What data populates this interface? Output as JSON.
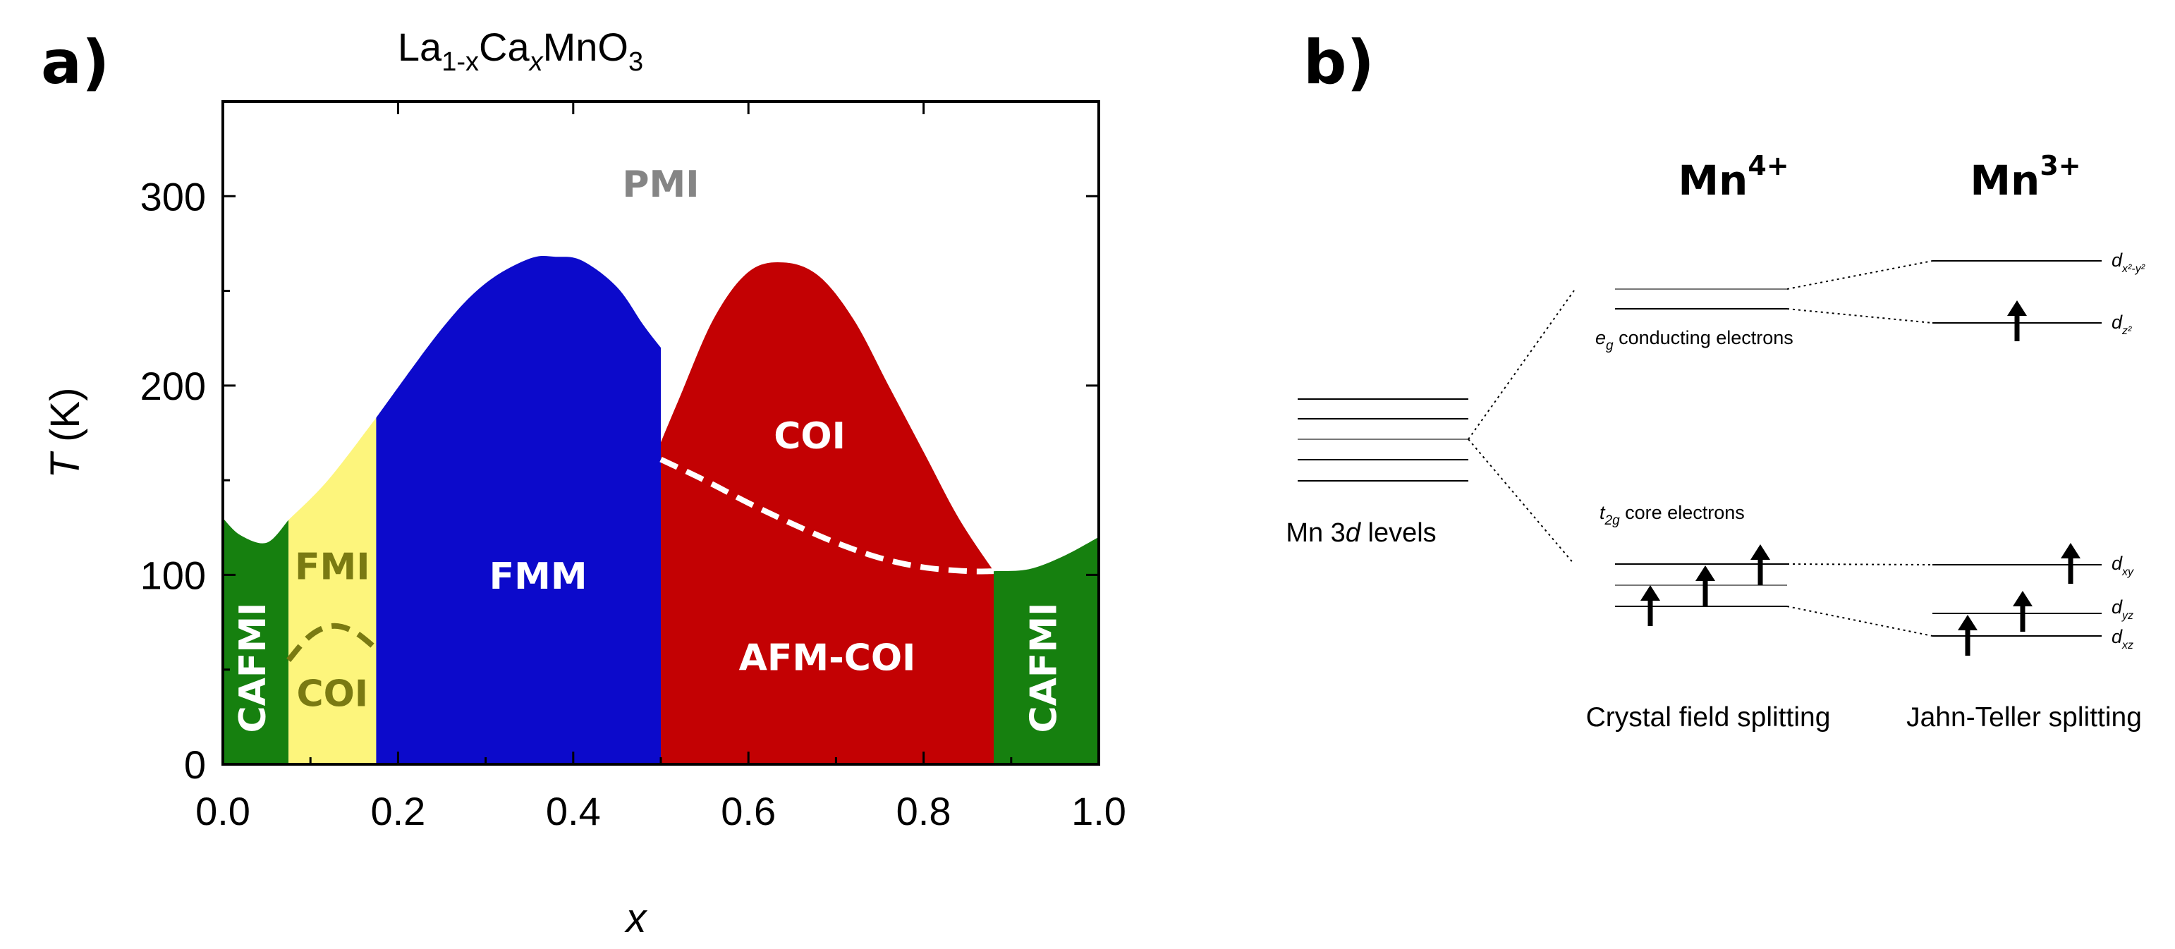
{
  "panel_a": {
    "label": "a)",
    "title": {
      "base1": "La",
      "sub1": "1-x",
      "base2": "Ca",
      "sub2": "x",
      "base3": "MnO",
      "sub3": "3"
    },
    "chart_data": {
      "type": "area",
      "title": "La1-xCaxMnO3",
      "xlabel": "x",
      "ylabel_italic": "T",
      "ylabel_unit": " (K)",
      "xlim": [
        0.0,
        1.0
      ],
      "ylim": [
        0,
        350
      ],
      "xticks": [
        0.0,
        0.2,
        0.4,
        0.6,
        0.8,
        1.0
      ],
      "xtick_labels": [
        "0.0",
        "0.2",
        "0.4",
        "0.6",
        "0.8",
        "1.0"
      ],
      "yticks": [
        0,
        100,
        200,
        300
      ],
      "ytick_labels": [
        "0",
        "100",
        "200",
        "300"
      ],
      "regions": [
        {
          "id": "cafmi-left",
          "label": "CAFMI",
          "color": "#16800f",
          "text_color": "#ffffff",
          "boundary": [
            [
              0.0,
              130
            ],
            [
              0.02,
              121
            ],
            [
              0.05,
              117
            ],
            [
              0.075,
              129
            ]
          ],
          "x_range": [
            0.0,
            0.075
          ]
        },
        {
          "id": "fmi",
          "label": "FMI",
          "color": "#fdf57c",
          "text_color": "#7a7a12",
          "boundary": [
            [
              0.075,
              129
            ],
            [
              0.12,
              150
            ],
            [
              0.175,
              183
            ]
          ],
          "x_range": [
            0.075,
            0.175
          ]
        },
        {
          "id": "fmm",
          "label": "FMM",
          "color": "#0c0acb",
          "text_color": "#ffffff",
          "boundary": [
            [
              0.175,
              183
            ],
            [
              0.25,
              230
            ],
            [
              0.3,
              254
            ],
            [
              0.35,
              267
            ],
            [
              0.38,
              268
            ],
            [
              0.41,
              266
            ],
            [
              0.45,
              252
            ],
            [
              0.48,
              232
            ],
            [
              0.5,
              220
            ]
          ],
          "x_range": [
            0.175,
            0.5
          ]
        },
        {
          "id": "coi-red",
          "label": "COI",
          "color": "#c30103",
          "text_color": "#ffffff",
          "boundary": [
            [
              0.5,
              170
            ],
            [
              0.52,
              192
            ],
            [
              0.56,
              235
            ],
            [
              0.6,
              260
            ],
            [
              0.64,
              265
            ],
            [
              0.68,
              258
            ],
            [
              0.72,
              235
            ],
            [
              0.76,
              200
            ],
            [
              0.8,
              165
            ],
            [
              0.84,
              130
            ],
            [
              0.88,
              102
            ]
          ],
          "x_range": [
            0.5,
            0.88
          ]
        },
        {
          "id": "cafmi-right",
          "label": "CAFMI",
          "color": "#16800f",
          "text_color": "#ffffff",
          "boundary": [
            [
              0.88,
              102
            ],
            [
              0.92,
              103
            ],
            [
              0.96,
              110
            ],
            [
              1.0,
              120
            ]
          ],
          "x_range": [
            0.88,
            1.0
          ]
        }
      ],
      "dashed_boundaries": [
        {
          "id": "coi-afm-boundary",
          "color": "#ffffff",
          "points": [
            [
              0.5,
              161
            ],
            [
              0.55,
              150
            ],
            [
              0.6,
              138
            ],
            [
              0.65,
              127
            ],
            [
              0.7,
              117
            ],
            [
              0.75,
              109
            ],
            [
              0.8,
              104
            ],
            [
              0.85,
              102
            ],
            [
              0.88,
              102
            ]
          ]
        },
        {
          "id": "fmi-coi-boundary",
          "color": "#7a7a12",
          "points": [
            [
              0.075,
              55
            ],
            [
              0.1,
              68
            ],
            [
              0.125,
              73
            ],
            [
              0.15,
              70
            ],
            [
              0.175,
              61
            ]
          ]
        }
      ],
      "annotations": [
        {
          "id": "pmi",
          "text": "PMI",
          "x": 0.5,
          "y": 305,
          "color": "#858585",
          "rotate": false
        },
        {
          "id": "fmi",
          "text": "FMI",
          "x": 0.125,
          "y": 103,
          "color": "#7a7a12",
          "rotate": false
        },
        {
          "id": "coi-small",
          "text": "COI",
          "x": 0.125,
          "y": 36,
          "color": "#7a7a12",
          "rotate": false
        },
        {
          "id": "fmm",
          "text": "FMM",
          "x": 0.36,
          "y": 98,
          "color": "#ffffff",
          "rotate": false
        },
        {
          "id": "coi-red",
          "text": "COI",
          "x": 0.67,
          "y": 172,
          "color": "#ffffff",
          "rotate": false
        },
        {
          "id": "afm-coi",
          "text": "AFM-COI",
          "x": 0.69,
          "y": 55,
          "color": "#ffffff",
          "rotate": false
        },
        {
          "id": "cafmi-left",
          "text": "CAFMI",
          "x": 0.037,
          "y": 51,
          "color": "#ffffff",
          "rotate": true
        },
        {
          "id": "cafmi-right",
          "text": "CAFMI",
          "x": 0.94,
          "y": 51,
          "color": "#ffffff",
          "rotate": true
        }
      ]
    }
  },
  "panel_b": {
    "label": "b)",
    "mn4": {
      "base": "Mn",
      "sup": "4+"
    },
    "mn3": {
      "base": "Mn",
      "sup": "3+"
    },
    "levels_caption": {
      "pre": "Mn 3",
      "italic": "d",
      "post": " levels"
    },
    "eg_caption": {
      "sym": "e",
      "sub": "g",
      "rest": " conducting electrons"
    },
    "t2g_caption": {
      "sym": "t",
      "sub": "2g",
      "rest": " core electrons"
    },
    "crystal_field_label": "Crystal field splitting",
    "jahn_teller_label": "Jahn-Teller splitting",
    "orbitals": [
      {
        "id": "dx2y2",
        "sym": "d",
        "sub": "x²-y²"
      },
      {
        "id": "dz2",
        "sym": "d",
        "sub": "z²"
      },
      {
        "id": "dxy",
        "sym": "d",
        "sub": "xy"
      },
      {
        "id": "dyz",
        "sym": "d",
        "sub": "yz"
      },
      {
        "id": "dxz",
        "sym": "d",
        "sub": "xz"
      }
    ]
  }
}
